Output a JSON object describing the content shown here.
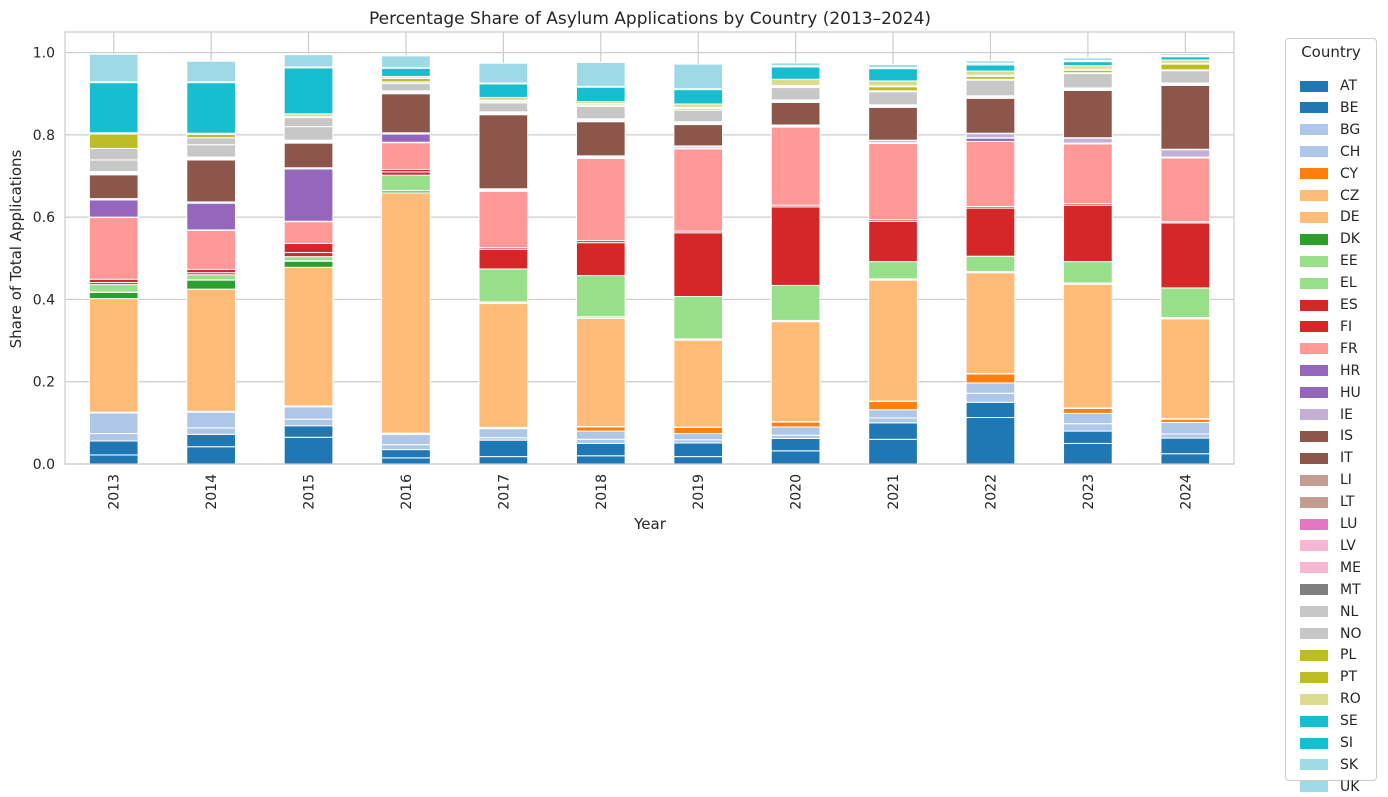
{
  "chart_data": {
    "type": "bar",
    "stacked": true,
    "title": "Percentage Share of Asylum Applications by Country (2013–2024)",
    "xlabel": "Year",
    "ylabel": "Share of Total Applications",
    "ylim": [
      0,
      1.05
    ],
    "yticks": [
      "0.0",
      "0.2",
      "0.4",
      "0.6",
      "0.8",
      "1.0"
    ],
    "grid": true,
    "legend_title": "Country",
    "legend_placement": "outside right",
    "categories": [
      "2013",
      "2014",
      "2015",
      "2016",
      "2017",
      "2018",
      "2019",
      "2020",
      "2021",
      "2022",
      "2023",
      "2024"
    ],
    "series": [
      {
        "name": "AT",
        "color": "#1f77b4",
        "values": [
          0.022,
          0.042,
          0.065,
          0.015,
          0.018,
          0.02,
          0.018,
          0.032,
          0.06,
          0.113,
          0.05,
          0.025
        ]
      },
      {
        "name": "BE",
        "color": "#1f77b4",
        "values": [
          0.034,
          0.03,
          0.028,
          0.02,
          0.04,
          0.03,
          0.033,
          0.03,
          0.04,
          0.037,
          0.03,
          0.038
        ]
      },
      {
        "name": "BG",
        "color": "#aec7e8",
        "values": [
          0.018,
          0.016,
          0.016,
          0.012,
          0.006,
          0.01,
          0.008,
          0.008,
          0.012,
          0.022,
          0.018,
          0.01
        ]
      },
      {
        "name": "CH",
        "color": "#aec7e8",
        "values": [
          0.05,
          0.038,
          0.03,
          0.025,
          0.022,
          0.02,
          0.015,
          0.02,
          0.02,
          0.025,
          0.025,
          0.028
        ]
      },
      {
        "name": "CY",
        "color": "#ff7f0e",
        "values": [
          0.001,
          0.001,
          0.001,
          0.002,
          0.002,
          0.01,
          0.015,
          0.012,
          0.02,
          0.022,
          0.012,
          0.008
        ]
      },
      {
        "name": "CZ",
        "color": "#ffbb78",
        "values": [
          0.001,
          0.001,
          0.001,
          0.001,
          0.001,
          0.001,
          0.001,
          0.001,
          0.001,
          0.001,
          0.001,
          0.001
        ]
      },
      {
        "name": "DE",
        "color": "#ffbb78",
        "values": [
          0.276,
          0.297,
          0.337,
          0.584,
          0.301,
          0.263,
          0.211,
          0.243,
          0.294,
          0.245,
          0.301,
          0.243
        ]
      },
      {
        "name": "DK",
        "color": "#2ca02c",
        "values": [
          0.015,
          0.022,
          0.015,
          0.005,
          0.003,
          0.003,
          0.002,
          0.002,
          0.002,
          0.002,
          0.002,
          0.002
        ]
      },
      {
        "name": "EE",
        "color": "#98df8a",
        "values": [
          0.001,
          0.001,
          0.001,
          0.001,
          0.001,
          0.001,
          0.001,
          0.001,
          0.001,
          0.001,
          0.001,
          0.001
        ]
      },
      {
        "name": "EL",
        "color": "#98df8a",
        "values": [
          0.018,
          0.012,
          0.01,
          0.037,
          0.08,
          0.1,
          0.103,
          0.085,
          0.042,
          0.037,
          0.052,
          0.072
        ]
      },
      {
        "name": "ES",
        "color": "#d62728",
        "values": [
          0.005,
          0.005,
          0.01,
          0.008,
          0.048,
          0.08,
          0.155,
          0.191,
          0.098,
          0.117,
          0.137,
          0.158
        ]
      },
      {
        "name": "FI",
        "color": "#d62728",
        "values": [
          0.008,
          0.008,
          0.022,
          0.006,
          0.004,
          0.005,
          0.004,
          0.004,
          0.004,
          0.004,
          0.004,
          0.003
        ]
      },
      {
        "name": "FR",
        "color": "#ff9896",
        "values": [
          0.15,
          0.095,
          0.053,
          0.065,
          0.137,
          0.2,
          0.2,
          0.19,
          0.185,
          0.158,
          0.145,
          0.155
        ]
      },
      {
        "name": "HR",
        "color": "#9467bd",
        "values": [
          0.001,
          0.001,
          0.001,
          0.001,
          0.001,
          0.001,
          0.001,
          0.001,
          0.001,
          0.008,
          0.001,
          0.001
        ]
      },
      {
        "name": "HU",
        "color": "#9467bd",
        "values": [
          0.042,
          0.065,
          0.127,
          0.02,
          0.002,
          0.001,
          0.001,
          0.001,
          0.001,
          0.001,
          0.001,
          0.001
        ]
      },
      {
        "name": "IE",
        "color": "#c5b0d5",
        "values": [
          0.002,
          0.002,
          0.002,
          0.002,
          0.002,
          0.003,
          0.004,
          0.002,
          0.005,
          0.01,
          0.012,
          0.018
        ]
      },
      {
        "name": "IS",
        "color": "#8c564b",
        "values": [
          0.001,
          0.001,
          0.001,
          0.001,
          0.001,
          0.001,
          0.001,
          0.001,
          0.001,
          0.001,
          0.001,
          0.001
        ]
      },
      {
        "name": "IT",
        "color": "#8c564b",
        "values": [
          0.058,
          0.102,
          0.06,
          0.095,
          0.18,
          0.083,
          0.052,
          0.055,
          0.08,
          0.085,
          0.115,
          0.155
        ]
      },
      {
        "name": "LI",
        "color": "#c49c94",
        "values": [
          0.001,
          0.001,
          0.001,
          0.001,
          0.001,
          0.001,
          0.001,
          0.001,
          0.001,
          0.001,
          0.001,
          0.001
        ]
      },
      {
        "name": "LT",
        "color": "#c49c94",
        "values": [
          0.001,
          0.001,
          0.001,
          0.001,
          0.001,
          0.001,
          0.001,
          0.001,
          0.001,
          0.001,
          0.001,
          0.001
        ]
      },
      {
        "name": "LU",
        "color": "#e377c2",
        "values": [
          0.002,
          0.002,
          0.002,
          0.002,
          0.002,
          0.002,
          0.002,
          0.001,
          0.001,
          0.001,
          0.001,
          0.001
        ]
      },
      {
        "name": "LV",
        "color": "#f7b6d2",
        "values": [
          0.001,
          0.001,
          0.001,
          0.001,
          0.001,
          0.001,
          0.001,
          0.001,
          0.001,
          0.001,
          0.001,
          0.001
        ]
      },
      {
        "name": "ME",
        "color": "#f7b6d2",
        "values": [
          0.001,
          0.001,
          0.001,
          0.001,
          0.001,
          0.001,
          0.001,
          0.001,
          0.001,
          0.001,
          0.001,
          0.001
        ]
      },
      {
        "name": "MT",
        "color": "#7f7f7f",
        "values": [
          0.002,
          0.001,
          0.001,
          0.001,
          0.001,
          0.001,
          0.001,
          0.001,
          0.001,
          0.001,
          0.001,
          0.001
        ]
      },
      {
        "name": "NL",
        "color": "#c7c7c7",
        "values": [
          0.028,
          0.03,
          0.033,
          0.018,
          0.022,
          0.03,
          0.028,
          0.03,
          0.032,
          0.038,
          0.035,
          0.03
        ]
      },
      {
        "name": "NO",
        "color": "#c7c7c7",
        "values": [
          0.028,
          0.017,
          0.022,
          0.004,
          0.002,
          0.003,
          0.004,
          0.002,
          0.002,
          0.002,
          0.002,
          0.002
        ]
      },
      {
        "name": "PL",
        "color": "#bcbd22",
        "values": [
          0.035,
          0.008,
          0.001,
          0.008,
          0.003,
          0.003,
          0.002,
          0.002,
          0.01,
          0.007,
          0.006,
          0.014
        ]
      },
      {
        "name": "PT",
        "color": "#bcbd22",
        "values": [
          0.001,
          0.001,
          0.001,
          0.001,
          0.001,
          0.001,
          0.001,
          0.001,
          0.002,
          0.003,
          0.003,
          0.002
        ]
      },
      {
        "name": "RO",
        "color": "#dbdb8d",
        "values": [
          0.002,
          0.002,
          0.007,
          0.004,
          0.007,
          0.005,
          0.008,
          0.015,
          0.012,
          0.01,
          0.008,
          0.008
        ]
      },
      {
        "name": "SE",
        "color": "#17becf",
        "values": [
          0.122,
          0.123,
          0.112,
          0.02,
          0.033,
          0.035,
          0.035,
          0.03,
          0.03,
          0.015,
          0.01,
          0.008
        ]
      },
      {
        "name": "SI",
        "color": "#17becf",
        "values": [
          0.001,
          0.001,
          0.001,
          0.001,
          0.001,
          0.001,
          0.001,
          0.002,
          0.002,
          0.003,
          0.002,
          0.002
        ]
      },
      {
        "name": "SK",
        "color": "#9edae5",
        "values": [
          0.001,
          0.001,
          0.001,
          0.001,
          0.001,
          0.001,
          0.001,
          0.001,
          0.001,
          0.001,
          0.001,
          0.001
        ]
      },
      {
        "name": "UK",
        "color": "#9edae5",
        "values": [
          0.067,
          0.05,
          0.03,
          0.028,
          0.048,
          0.058,
          0.06,
          0.007,
          0.007,
          0.006,
          0.006,
          0.004
        ]
      }
    ]
  }
}
